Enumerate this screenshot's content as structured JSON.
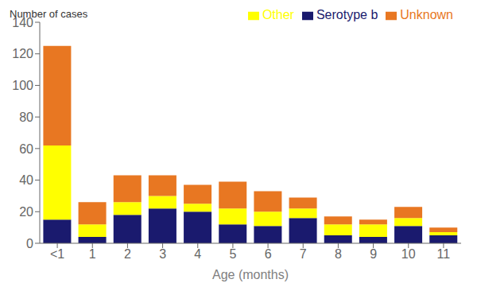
{
  "chart_data": {
    "type": "bar",
    "stacked": true,
    "xlabel": "Age (months)",
    "ylabel": "Number of cases",
    "categories": [
      "<1",
      "1",
      "2",
      "3",
      "4",
      "5",
      "6",
      "7",
      "8",
      "9",
      "10",
      "11"
    ],
    "series": [
      {
        "name": "Serotype b",
        "color": "#1a1a6e",
        "values": [
          15,
          4,
          18,
          22,
          20,
          12,
          11,
          16,
          5,
          4,
          11,
          5
        ]
      },
      {
        "name": "Other",
        "color": "#ffff00",
        "values": [
          47,
          8,
          8,
          8,
          5,
          10,
          9,
          6,
          7,
          8,
          5,
          2
        ]
      },
      {
        "name": "Unknown",
        "color": "#e87722",
        "values": [
          63,
          14,
          17,
          13,
          12,
          17,
          13,
          7,
          5,
          3,
          7,
          3
        ]
      }
    ],
    "ylim": [
      0,
      140
    ],
    "yticks": [
      0,
      20,
      40,
      60,
      80,
      100,
      120,
      140
    ],
    "legend": "upper right",
    "grid": false
  }
}
